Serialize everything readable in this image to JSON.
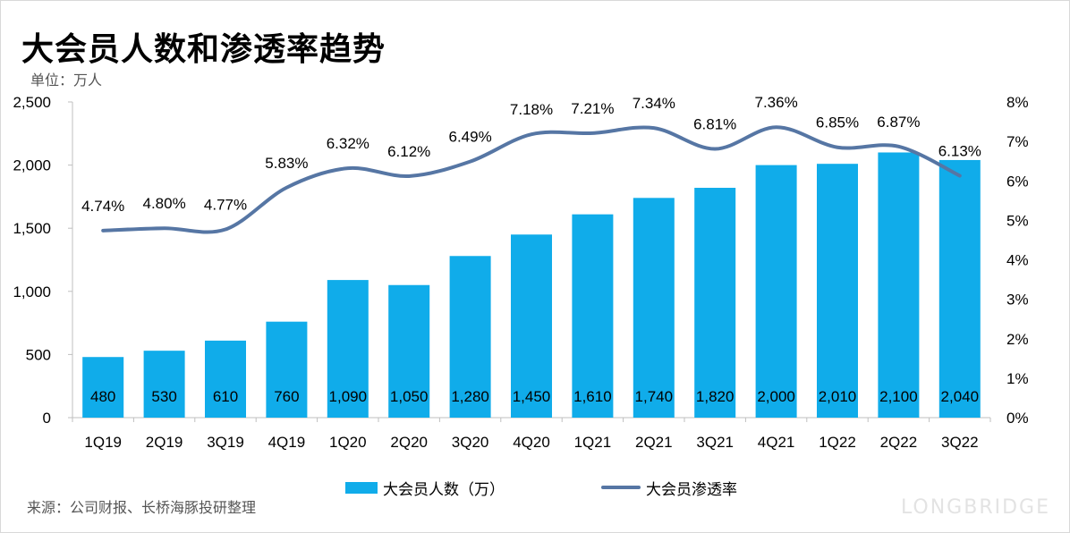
{
  "title": "大会员人数和渗透率趋势",
  "unit_label": "单位：万人",
  "source": "来源：公司财报、长桥海豚投研整理",
  "watermark": {
    "brand": "LONGBRIDGE"
  },
  "legend": {
    "bar": "大会员人数（万）",
    "line": "大会员渗透率"
  },
  "colors": {
    "bar": "#10acea",
    "line": "#5676a4"
  },
  "chart_data": {
    "type": "bar+line",
    "categories": [
      "1Q19",
      "2Q19",
      "3Q19",
      "4Q19",
      "1Q20",
      "2Q20",
      "3Q20",
      "4Q20",
      "1Q21",
      "2Q21",
      "3Q21",
      "4Q21",
      "1Q22",
      "2Q22",
      "3Q22"
    ],
    "series": [
      {
        "name": "大会员人数（万）",
        "type": "bar",
        "axis": "left",
        "values": [
          480,
          530,
          610,
          760,
          1090,
          1050,
          1280,
          1450,
          1610,
          1740,
          1820,
          2000,
          2010,
          2100,
          2040
        ],
        "labels": [
          "480",
          "530",
          "610",
          "760",
          "1,090",
          "1,050",
          "1,280",
          "1,450",
          "1,610",
          "1,740",
          "1,820",
          "2,000",
          "2,010",
          "2,100",
          "2,040"
        ]
      },
      {
        "name": "大会员渗透率",
        "type": "line",
        "axis": "right",
        "values": [
          4.74,
          4.8,
          4.77,
          5.83,
          6.32,
          6.12,
          6.49,
          7.18,
          7.21,
          7.34,
          6.81,
          7.36,
          6.85,
          6.87,
          6.13
        ],
        "labels": [
          "4.74%",
          "4.80%",
          "4.77%",
          "5.83%",
          "6.32%",
          "6.12%",
          "6.49%",
          "7.18%",
          "7.21%",
          "7.34%",
          "6.81%",
          "7.36%",
          "6.85%",
          "6.87%",
          "6.13%"
        ]
      }
    ],
    "y_left": {
      "ylim": [
        0,
        2500
      ],
      "ticks": [
        "0",
        "500",
        "1,000",
        "1,500",
        "2,000",
        "2,500"
      ]
    },
    "y_right": {
      "ylim": [
        0,
        8
      ],
      "ticks": [
        "0%",
        "1%",
        "2%",
        "3%",
        "4%",
        "5%",
        "6%",
        "7%",
        "8%"
      ]
    },
    "grid": false,
    "legend_position": "bottom"
  }
}
